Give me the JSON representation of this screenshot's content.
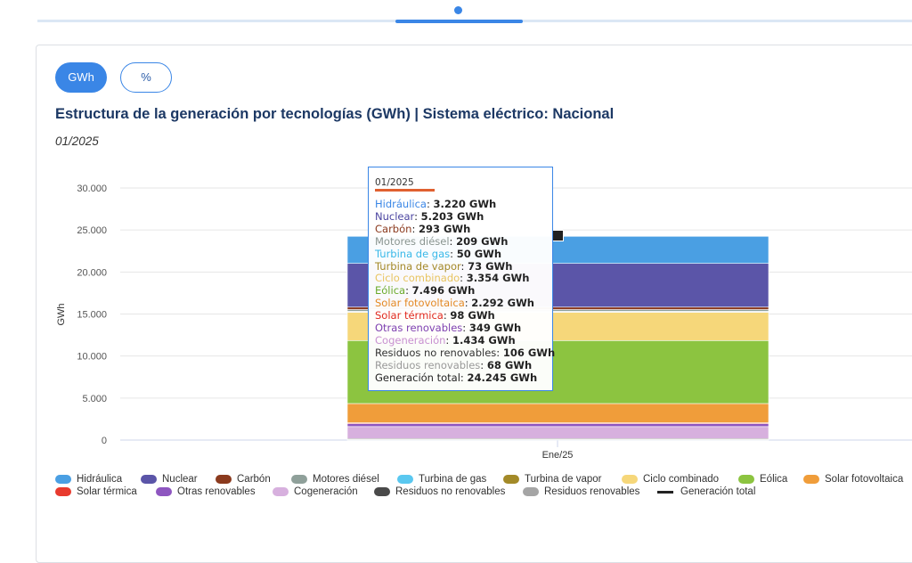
{
  "tabs_indicator": {
    "active_color": "#3a86e6"
  },
  "units": {
    "gwh_label": "GWh",
    "pct_label": "%"
  },
  "title": "Estructura de la generación por tecnologías (GWh) | Sistema eléctrico: Nacional",
  "subtitle": "01/2025",
  "chart_data": {
    "type": "bar",
    "stacked": true,
    "categories": [
      "Ene/25"
    ],
    "ylabel": "GWh",
    "ylim": [
      0,
      30000
    ],
    "yticks": [
      "0",
      "5.000",
      "10.000",
      "15.000",
      "20.000",
      "25.000",
      "30.000"
    ],
    "grid": true,
    "legend_position": "bottom",
    "series": [
      {
        "name": "Hidráulica",
        "color": "#4a9fe3",
        "values": [
          3220
        ],
        "label": "3.220 GWh"
      },
      {
        "name": "Nuclear",
        "color": "#5b55a8",
        "values": [
          5203
        ],
        "label": "5.203 GWh"
      },
      {
        "name": "Carbón",
        "color": "#8b3a1e",
        "values": [
          293
        ],
        "label": "293 GWh"
      },
      {
        "name": "Motores diésel",
        "color": "#8fa09a",
        "values": [
          209
        ],
        "label": "209 GWh"
      },
      {
        "name": "Turbina de gas",
        "color": "#5ac8f0",
        "values": [
          50
        ],
        "label": "50 GWh"
      },
      {
        "name": "Turbina de vapor",
        "color": "#a38a28",
        "values": [
          73
        ],
        "label": "73 GWh"
      },
      {
        "name": "Ciclo combinado",
        "color": "#f6d77a",
        "values": [
          3354
        ],
        "label": "3.354 GWh"
      },
      {
        "name": "Eólica",
        "color": "#8cc440",
        "values": [
          7496
        ],
        "label": "7.496 GWh"
      },
      {
        "name": "Solar fotovoltaica",
        "color": "#f09d3a",
        "values": [
          2292
        ],
        "label": "2.292 GWh"
      },
      {
        "name": "Solar térmica",
        "color": "#e83a2e",
        "values": [
          98
        ],
        "label": "98 GWh"
      },
      {
        "name": "Otras renovables",
        "color": "#8e56c0",
        "values": [
          349
        ],
        "label": "349 GWh"
      },
      {
        "name": "Cogeneración",
        "color": "#d7b0de",
        "values": [
          1434
        ],
        "label": "1.434 GWh"
      },
      {
        "name": "Residuos no renovables",
        "color": "#4a4a4a",
        "values": [
          106
        ],
        "label": "106 GWh"
      },
      {
        "name": "Residuos renovables",
        "color": "#a5a5a5",
        "values": [
          68
        ],
        "label": "68 GWh"
      }
    ],
    "total": {
      "name": "Generación total",
      "color": "#222222",
      "values": [
        24245
      ],
      "label": "24.245 GWh"
    }
  },
  "tooltip": {
    "date": "01/2025",
    "rows": [
      {
        "name": "Hidráulica",
        "value": "3.220 GWh",
        "color": "#3a86e6"
      },
      {
        "name": "Nuclear",
        "value": "5.203 GWh",
        "color": "#4b44a0"
      },
      {
        "name": "Carbón",
        "value": "293 GWh",
        "color": "#8b3a1e"
      },
      {
        "name": "Motores diésel",
        "value": "209 GWh",
        "color": "#8a9590"
      },
      {
        "name": "Turbina de gas",
        "value": "50 GWh",
        "color": "#38b8e8"
      },
      {
        "name": "Turbina de vapor",
        "value": "73 GWh",
        "color": "#a38a28"
      },
      {
        "name": "Ciclo combinado",
        "value": "3.354 GWh",
        "color": "#e8c460"
      },
      {
        "name": "Eólica",
        "value": "7.496 GWh",
        "color": "#6aaa2a"
      },
      {
        "name": "Solar fotovoltaica",
        "value": "2.292 GWh",
        "color": "#e48a24"
      },
      {
        "name": "Solar térmica",
        "value": "98 GWh",
        "color": "#e02a20"
      },
      {
        "name": "Otras renovables",
        "value": "349 GWh",
        "color": "#7e40b0"
      },
      {
        "name": "Cogeneración",
        "value": "1.434 GWh",
        "color": "#c890d0"
      },
      {
        "name": "Residuos no renovables",
        "value": "106 GWh",
        "color": "#333333"
      },
      {
        "name": "Residuos renovables",
        "value": "68 GWh",
        "color": "#999999"
      },
      {
        "name": "Generación total",
        "value": "24.245 GWh",
        "color": "#222222"
      }
    ]
  }
}
